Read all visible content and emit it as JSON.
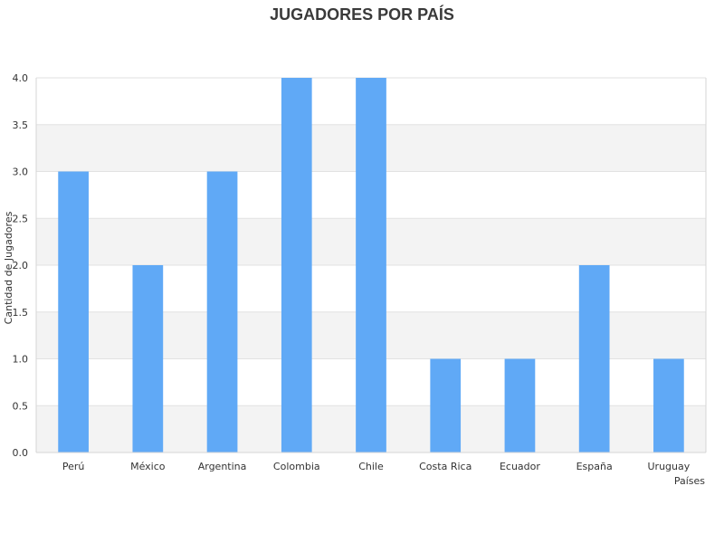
{
  "chart_data": {
    "type": "bar",
    "title": "JUGADORES POR PAÍS",
    "xlabel": "Países",
    "ylabel": "Cantidad de Jugadores",
    "categories": [
      "Perú",
      "México",
      "Argentina",
      "Colombia",
      "Chile",
      "Costa Rica",
      "Ecuador",
      "España",
      "Uruguay"
    ],
    "values": [
      3,
      2,
      3,
      4,
      4,
      1,
      1,
      2,
      1
    ],
    "ylim": [
      0,
      4
    ],
    "yticks": [
      "0.0",
      "0.5",
      "1.0",
      "1.5",
      "2.0",
      "2.5",
      "3.0",
      "3.5",
      "4.0"
    ],
    "grid": true,
    "legend": "none",
    "colors": {
      "bar": "#60a9f6",
      "band": "#f3f3f3",
      "grid": "#e2e2e2",
      "axis": "#d6d6d6"
    }
  }
}
